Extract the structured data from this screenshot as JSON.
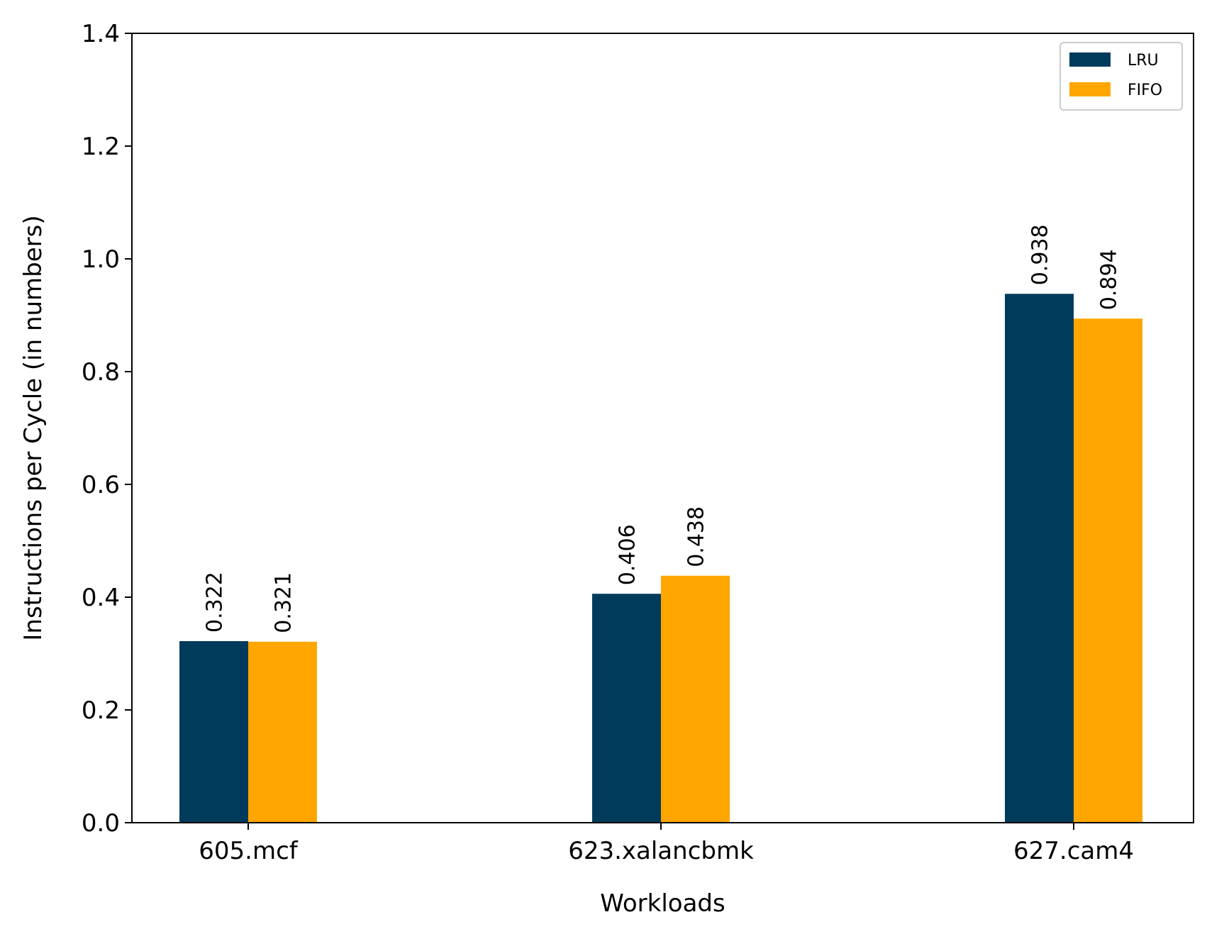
{
  "chart_data": {
    "type": "bar",
    "xlabel": "Workloads",
    "ylabel": "Instructions per Cycle (in numbers)",
    "categories": [
      "605.mcf",
      "623.xalancbmk",
      "627.cam4"
    ],
    "series": [
      {
        "name": "LRU",
        "color": "#003b5c",
        "values": [
          0.322,
          0.406,
          0.938
        ],
        "labels": [
          "0.322",
          "0.406",
          "0.938"
        ]
      },
      {
        "name": "FIFO",
        "color": "#ffa600",
        "values": [
          0.321,
          0.438,
          0.894
        ],
        "labels": [
          "0.321",
          "0.438",
          "0.894"
        ]
      }
    ],
    "ylim": [
      0,
      1.4
    ],
    "yticks": [
      0.0,
      0.2,
      0.4,
      0.6,
      0.8,
      1.0,
      1.2,
      1.4
    ],
    "ytick_labels": [
      "0.0",
      "0.2",
      "0.4",
      "0.6",
      "0.8",
      "1.0",
      "1.2",
      "1.4"
    ],
    "grid": false,
    "legend_position": "top-right",
    "data_labels": true
  }
}
